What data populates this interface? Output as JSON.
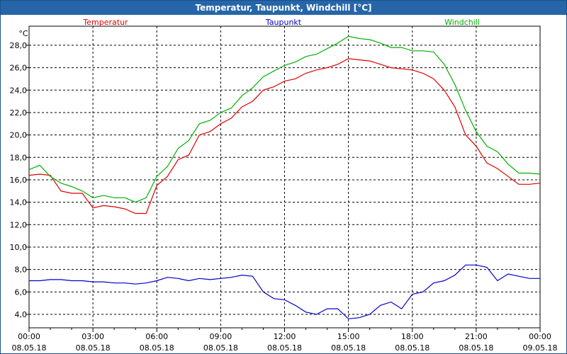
{
  "window": {
    "title": "Temperatur, Taupunkt, Windchill [°C]"
  },
  "chart_data": {
    "type": "line",
    "title": "Temperatur, Taupunkt, Windchill [°C]",
    "ylabel": "°C",
    "ylim": [
      2.8,
      29.7
    ],
    "yticks": [
      4,
      6,
      8,
      10,
      12,
      14,
      16,
      18,
      20,
      22,
      24,
      26,
      28
    ],
    "ytick_labels": [
      "4,0",
      "6,0",
      "8,0",
      "10,0",
      "12,0",
      "14,0",
      "16,0",
      "18,0",
      "20,0",
      "22,0",
      "24,0",
      "26,0",
      "28,0"
    ],
    "xlim": [
      0,
      24
    ],
    "xticks": [
      0,
      3,
      6,
      9,
      12,
      15,
      18,
      21,
      24
    ],
    "xtick_times": [
      "00:00",
      "03:00",
      "06:00",
      "09:00",
      "12:00",
      "15:00",
      "18:00",
      "21:00",
      "00:00"
    ],
    "xtick_dates": [
      "08.05.18",
      "08.05.18",
      "08.05.18",
      "08.05.18",
      "08.05.18",
      "08.05.18",
      "08.05.18",
      "08.05.18",
      "09.05.18"
    ],
    "grid": true,
    "series": [
      {
        "name": "Temperatur",
        "color": "#e00000",
        "x": [
          0,
          0.5,
          1,
          1.5,
          2,
          2.5,
          3,
          3.5,
          4,
          4.5,
          5,
          5.5,
          6,
          6.5,
          7,
          7.5,
          8,
          8.5,
          9,
          9.5,
          10,
          10.5,
          11,
          11.5,
          12,
          12.5,
          13,
          13.5,
          14,
          14.5,
          15,
          15.5,
          16,
          16.5,
          17,
          17.5,
          18,
          18.5,
          19,
          19.5,
          20,
          20.5,
          21,
          21.5,
          22,
          22.5,
          23,
          23.5,
          24
        ],
        "values": [
          16.4,
          16.5,
          16.4,
          15.0,
          14.8,
          14.8,
          13.5,
          13.7,
          13.6,
          13.4,
          13.0,
          13.0,
          15.5,
          16.3,
          17.8,
          18.2,
          20.0,
          20.3,
          21.0,
          21.5,
          22.5,
          23.0,
          24.0,
          24.3,
          24.8,
          25.0,
          25.5,
          25.8,
          26.0,
          26.3,
          26.8,
          26.7,
          26.6,
          26.3,
          26.0,
          25.9,
          25.8,
          25.5,
          25.0,
          24.0,
          22.5,
          20.0,
          19.0,
          17.5,
          17.0,
          16.3,
          15.6,
          15.6,
          15.7
        ]
      },
      {
        "name": "Taupunkt",
        "color": "#0000cc",
        "x": [
          0,
          0.5,
          1,
          1.5,
          2,
          2.5,
          3,
          3.5,
          4,
          4.5,
          5,
          5.5,
          6,
          6.5,
          7,
          7.5,
          8,
          8.5,
          9,
          9.5,
          10,
          10.5,
          11,
          11.5,
          12,
          12.5,
          13,
          13.5,
          14,
          14.5,
          15,
          15.5,
          16,
          16.5,
          17,
          17.5,
          18,
          18.5,
          19,
          19.5,
          20,
          20.5,
          21,
          21.5,
          22,
          22.5,
          23,
          23.5,
          24
        ],
        "values": [
          7.0,
          7.0,
          7.1,
          7.1,
          7.0,
          7.0,
          6.9,
          6.9,
          6.8,
          6.8,
          6.7,
          6.8,
          7.0,
          7.3,
          7.2,
          7.0,
          7.2,
          7.1,
          7.2,
          7.3,
          7.5,
          7.4,
          6.0,
          5.4,
          5.3,
          4.8,
          4.2,
          4.0,
          4.5,
          4.5,
          3.6,
          3.7,
          4.0,
          4.8,
          5.1,
          4.5,
          5.8,
          6.0,
          6.8,
          7.0,
          7.5,
          8.4,
          8.4,
          8.2,
          7.0,
          7.6,
          7.4,
          7.2,
          7.2
        ]
      },
      {
        "name": "Windchill",
        "color": "#00b000",
        "x": [
          0,
          0.5,
          1,
          1.5,
          2,
          2.5,
          3,
          3.5,
          4,
          4.5,
          5,
          5.5,
          6,
          6.5,
          7,
          7.5,
          8,
          8.5,
          9,
          9.5,
          10,
          10.5,
          11,
          11.5,
          12,
          12.5,
          13,
          13.5,
          14,
          14.5,
          15,
          15.5,
          16,
          16.5,
          17,
          17.5,
          18,
          18.5,
          19,
          19.5,
          20,
          20.5,
          21,
          21.5,
          22,
          22.5,
          23,
          23.5,
          24
        ],
        "values": [
          16.9,
          17.3,
          16.3,
          15.7,
          15.4,
          15.0,
          14.4,
          14.6,
          14.4,
          14.4,
          14.0,
          14.4,
          16.3,
          17.2,
          18.8,
          19.5,
          21.0,
          21.3,
          22.0,
          22.4,
          23.5,
          24.2,
          25.2,
          25.7,
          26.2,
          26.5,
          27.0,
          27.2,
          27.7,
          28.2,
          28.8,
          28.6,
          28.5,
          28.2,
          27.8,
          27.8,
          27.5,
          27.5,
          27.4,
          26.3,
          24.5,
          22.2,
          20.3,
          19.0,
          18.5,
          17.4,
          16.6,
          16.6,
          16.5
        ]
      }
    ]
  }
}
